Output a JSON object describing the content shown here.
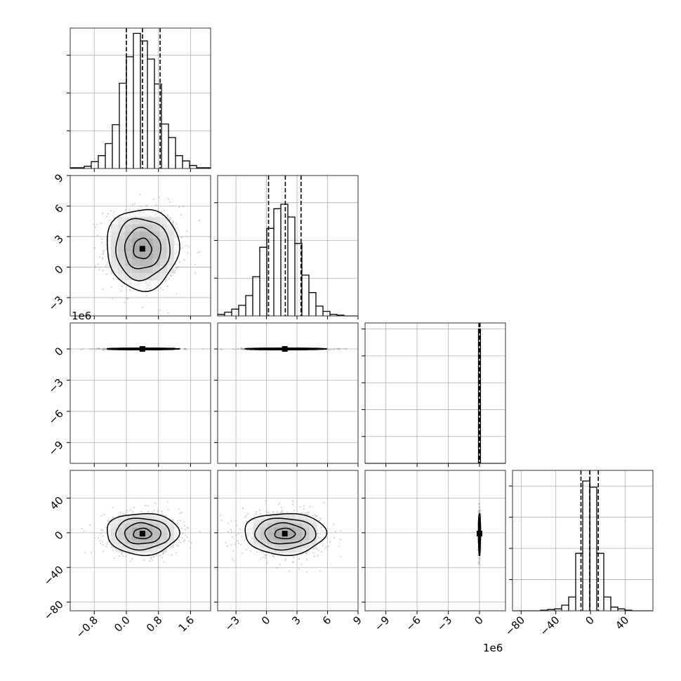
{
  "colors": {
    "ink": "#000000",
    "grid": "#b0b0b0",
    "points": "#9a9a9a"
  },
  "chart_data": {
    "type": "corner",
    "variables": [
      {
        "range": [
          -1.4,
          2.1
        ],
        "ticks": [
          -0.8,
          0.0,
          0.8,
          1.6
        ],
        "tick_labels": [
          "−0.8",
          "0.0",
          "0.8",
          "1.6"
        ]
      },
      {
        "range": [
          -4.8,
          9.0
        ],
        "ticks": [
          -3,
          0,
          3,
          6,
          9
        ],
        "tick_labels": [
          "−3",
          "0",
          "3",
          "6",
          "9"
        ]
      },
      {
        "range": [
          -11.0,
          2.5
        ],
        "ticks": [
          -9,
          -6,
          -3,
          0
        ],
        "tick_labels": [
          "−9",
          "−6",
          "−3",
          "0"
        ],
        "offset_label": "1e6"
      },
      {
        "range": [
          -90,
          72
        ],
        "ticks": [
          -80,
          -40,
          0,
          40
        ],
        "tick_labels": [
          "−80",
          "−40",
          "0",
          "40"
        ]
      }
    ],
    "quantiles": [
      [
        0.0,
        0.4,
        0.84
      ],
      [
        0.2,
        1.85,
        3.4
      ],
      [
        -0.05,
        0.0,
        0.05
      ],
      [
        -11,
        -1,
        9
      ]
    ],
    "histograms": [
      {
        "edges": [
          -1.4,
          -1.225,
          -1.05,
          -0.875,
          -0.7,
          -0.525,
          -0.35,
          -0.175,
          0.0,
          0.175,
          0.35,
          0.525,
          0.7,
          0.875,
          1.05,
          1.225,
          1.4,
          1.575,
          1.75,
          1.925,
          2.1
        ],
        "counts": [
          1,
          1,
          3,
          9,
          17,
          33,
          58,
          113,
          148,
          179,
          169,
          145,
          112,
          59,
          41,
          17,
          10,
          4,
          1,
          1
        ],
        "yticks": [
          50,
          100,
          150
        ],
        "ymax": 186
      },
      {
        "edges": [
          -4.8,
          -4.11,
          -3.42,
          -2.73,
          -2.04,
          -1.35,
          -0.66,
          0.03,
          0.72,
          1.41,
          2.1,
          2.79,
          3.48,
          4.17,
          4.86,
          5.55,
          6.24,
          6.93,
          7.62,
          8.31,
          9.0
        ],
        "counts": [
          2,
          5,
          9,
          14,
          27,
          52,
          91,
          116,
          142,
          148,
          131,
          96,
          54,
          31,
          13,
          6,
          2,
          1,
          0,
          0
        ],
        "yticks": [
          50,
          100,
          150
        ],
        "ymax": 186
      },
      {
        "edges": [
          -0.1,
          0.1
        ],
        "counts": [
          1000
        ],
        "yticks": [
          200,
          400,
          600,
          800,
          1000
        ],
        "ymax": 1045
      },
      {
        "edges": [
          -90,
          -81.9,
          -73.8,
          -65.7,
          -57.6,
          -49.5,
          -41.4,
          -33.3,
          -25.2,
          -17.1,
          -9.0,
          -0.9,
          7.2,
          15.3,
          23.4,
          31.5,
          39.6,
          47.7,
          55.8,
          63.9,
          72.0
        ],
        "counts": [
          0,
          0,
          0,
          0,
          1,
          2,
          3,
          9,
          22,
          92,
          208,
          198,
          92,
          22,
          6,
          3,
          1,
          0,
          0,
          0
        ],
        "yticks": [
          50,
          100,
          150,
          200
        ],
        "ymax": 225
      }
    ],
    "pairs": [
      {
        "row": 1,
        "col": 0,
        "mean": [
          0.4,
          1.8
        ],
        "sd": [
          0.45,
          2.0
        ],
        "rho": 0.0
      },
      {
        "row": 2,
        "col": 0,
        "mean": [
          0.4,
          0.0
        ],
        "sd": [
          0.45,
          0.04
        ],
        "rho": 0.0
      },
      {
        "row": 2,
        "col": 1,
        "mean": [
          1.8,
          0.0
        ],
        "sd": [
          2.0,
          0.04
        ],
        "rho": 0.0
      },
      {
        "row": 3,
        "col": 0,
        "mean": [
          0.4,
          -1.0
        ],
        "sd": [
          0.45,
          12.0
        ],
        "rho": 0.0
      },
      {
        "row": 3,
        "col": 1,
        "mean": [
          1.8,
          -1.0
        ],
        "sd": [
          2.0,
          12.0
        ],
        "rho": 0.0
      },
      {
        "row": 3,
        "col": 2,
        "mean": [
          0.0,
          -1.0
        ],
        "sd": [
          0.05,
          12.0
        ],
        "rho": 0.0
      }
    ],
    "contour_levels": [
      0.5,
      1.0,
      1.5,
      2.0
    ],
    "grid": true
  }
}
